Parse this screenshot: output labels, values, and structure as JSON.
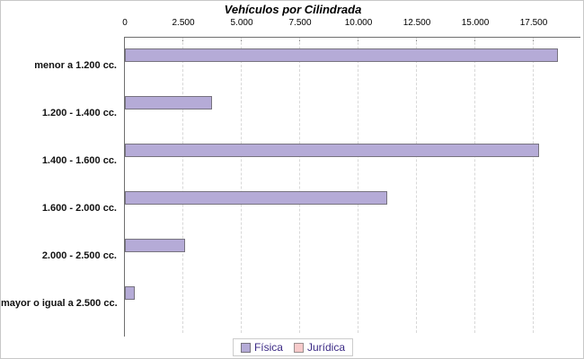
{
  "title": "Vehículos por Cilindrada",
  "colors": {
    "fisica_fill": "#b5abd7",
    "fisica_border": "#77737f",
    "juridica_fill": "#f7caca",
    "juridica_border": "#9a8f8f",
    "axis_line": "#6f6f6f",
    "gridline": "#d8d8d8",
    "legend_text": "#3b2a85",
    "legend_border": "#cccccc"
  },
  "chart_data": {
    "type": "bar",
    "orientation": "horizontal",
    "title": "Vehículos por Cilindrada",
    "categories": [
      "menor a 1.200 cc.",
      "1.200 - 1.400 cc.",
      "1.400 - 1.600 cc.",
      "1.600 - 2.000 cc.",
      "2.000 - 2.500 cc.",
      "mayor o igual a 2.500 cc."
    ],
    "series": [
      {
        "name": "Física",
        "values": [
          18470,
          3650,
          17660,
          11160,
          2490,
          360
        ]
      },
      {
        "name": "Jurídica",
        "values": [
          0,
          0,
          0,
          0,
          0,
          0
        ]
      }
    ],
    "x_ticks": [
      0,
      2500,
      5000,
      7500,
      10000,
      12500,
      15000,
      17500
    ],
    "x_tick_labels": [
      "0",
      "2.500",
      "5.000",
      "7.500",
      "10.000",
      "12.500",
      "15.000",
      "17.500"
    ],
    "xlim": [
      0,
      19500
    ],
    "grid": "vertical-dashed",
    "legend_position": "bottom"
  }
}
